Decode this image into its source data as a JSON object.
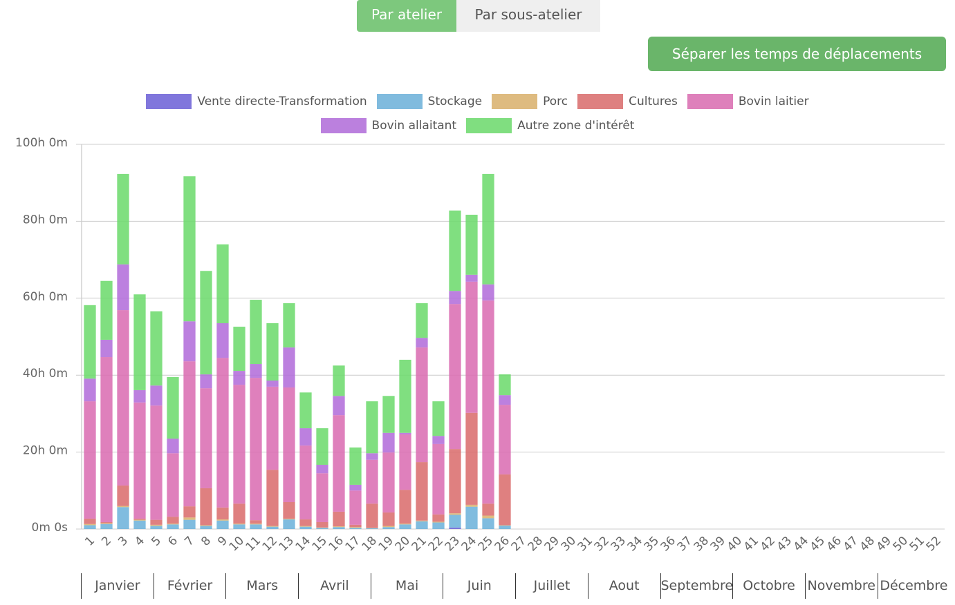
{
  "tabs": [
    "Par atelier",
    "Par sous-atelier"
  ],
  "button": "Séparer les temps de déplacements",
  "months": [
    "Janvier",
    "Février",
    "Mars",
    "Avril",
    "Mai",
    "Juin",
    "Juillet",
    "Aout",
    "Septembre",
    "Octobre",
    "Novembre",
    "Décembre"
  ],
  "chart_data": {
    "type": "bar",
    "stacked": true,
    "categories": [
      "1",
      "2",
      "3",
      "4",
      "5",
      "6",
      "7",
      "8",
      "9",
      "10",
      "11",
      "12",
      "13",
      "14",
      "15",
      "16",
      "17",
      "18",
      "19",
      "20",
      "21",
      "22",
      "23",
      "24",
      "25",
      "26",
      "27",
      "28",
      "29",
      "30",
      "31",
      "32",
      "33",
      "34",
      "35",
      "36",
      "37",
      "38",
      "39",
      "40",
      "41",
      "42",
      "43",
      "44",
      "45",
      "46",
      "47",
      "48",
      "49",
      "50",
      "51",
      "52"
    ],
    "ylim": [
      0,
      100
    ],
    "yticks": [
      {
        "value": 0,
        "label": "0m 0s"
      },
      {
        "value": 20,
        "label": "20h 0m"
      },
      {
        "value": 40,
        "label": "40h 0m"
      },
      {
        "value": 60,
        "label": "60h 0m"
      },
      {
        "value": 80,
        "label": "80h 0m"
      },
      {
        "value": 100,
        "label": "100h 0m"
      }
    ],
    "grid": true,
    "legend": "top",
    "series": [
      {
        "name": "Vente directe-Transformation",
        "color": "#6a5fd6",
        "values": [
          0,
          0,
          0,
          0,
          0,
          0,
          0,
          0,
          0,
          0,
          0,
          0,
          0,
          0,
          0,
          0,
          0,
          0,
          0,
          0,
          0,
          0,
          0.4,
          0,
          0,
          0,
          0,
          0,
          0,
          0,
          0,
          0,
          0,
          0,
          0,
          0,
          0,
          0,
          0,
          0,
          0,
          0,
          0,
          0,
          0,
          0,
          0,
          0,
          0,
          0,
          0,
          0
        ]
      },
      {
        "name": "Stockage",
        "color": "#6ab0d9",
        "values": [
          1,
          1.3,
          5.7,
          2.2,
          0.8,
          1.2,
          2.4,
          0.8,
          2.2,
          1.2,
          1.2,
          0.6,
          2.5,
          0.6,
          0.3,
          0.5,
          0.3,
          0.2,
          0.5,
          1.2,
          2,
          1.7,
          3.3,
          5.8,
          2.8,
          0.9,
          0,
          0,
          0,
          0,
          0,
          0,
          0,
          0,
          0,
          0,
          0,
          0,
          0,
          0,
          0,
          0,
          0,
          0,
          0,
          0,
          0,
          0,
          0,
          0,
          0,
          0
        ]
      },
      {
        "name": "Porc",
        "color": "#d9b06a",
        "values": [
          0.3,
          0.2,
          0.3,
          0.2,
          0.3,
          0.2,
          0.6,
          0.2,
          0.3,
          0.2,
          0.2,
          0.2,
          0.2,
          0.2,
          0.1,
          0.2,
          0.2,
          0.1,
          0.3,
          0.2,
          0.2,
          0.2,
          0.4,
          0.5,
          0.7,
          0.1,
          0,
          0,
          0,
          0,
          0,
          0,
          0,
          0,
          0,
          0,
          0,
          0,
          0,
          0,
          0,
          0,
          0,
          0,
          0,
          0,
          0,
          0,
          0,
          0,
          0,
          0
        ]
      },
      {
        "name": "Cultures",
        "color": "#d96a6a",
        "values": [
          1.4,
          0.3,
          5.3,
          0.3,
          1.3,
          1.8,
          2.9,
          9.6,
          3.1,
          5.2,
          0.9,
          14.6,
          4.3,
          1.7,
          1.4,
          3.8,
          0.6,
          6.3,
          3.5,
          8.8,
          15.2,
          1.9,
          16.7,
          23.9,
          3.1,
          13.2,
          0,
          0,
          0,
          0,
          0,
          0,
          0,
          0,
          0,
          0,
          0,
          0,
          0,
          0,
          0,
          0,
          0,
          0,
          0,
          0,
          0,
          0,
          0,
          0,
          0,
          0
        ]
      },
      {
        "name": "Bovin laitier",
        "color": "#d96ab0",
        "values": [
          30.5,
          42.9,
          45.6,
          30.2,
          29.7,
          16.5,
          37.7,
          26,
          38.9,
          30.9,
          37,
          21.6,
          29.8,
          19.2,
          12.7,
          25.1,
          8.9,
          11.4,
          15.6,
          14.4,
          29.8,
          18.3,
          37.7,
          34.1,
          52.8,
          18.1,
          0,
          0,
          0,
          0,
          0,
          0,
          0,
          0,
          0,
          0,
          0,
          0,
          0,
          0,
          0,
          0,
          0,
          0,
          0,
          0,
          0,
          0,
          0,
          0,
          0,
          0
        ]
      },
      {
        "name": "Bovin allaitant",
        "color": "#b06ad9",
        "values": [
          5.9,
          4.5,
          11.9,
          3.2,
          5.2,
          3.8,
          10.4,
          3.6,
          9,
          3.6,
          3.6,
          1.6,
          10.4,
          4.5,
          2.2,
          5,
          1.5,
          1.7,
          5.1,
          0.4,
          2.5,
          2.1,
          3.4,
          1.8,
          4.2,
          2.5,
          0,
          0,
          0,
          0,
          0,
          0,
          0,
          0,
          0,
          0,
          0,
          0,
          0,
          0,
          0,
          0,
          0,
          0,
          0,
          0,
          0,
          0,
          0,
          0,
          0,
          0
        ]
      },
      {
        "name": "Autre zone d'intérêt",
        "color": "#6ad96a",
        "values": [
          19.1,
          15.3,
          23.5,
          24.9,
          19.3,
          16,
          37.7,
          26.9,
          20.5,
          11.5,
          16.7,
          14.9,
          11.5,
          9.3,
          9.5,
          7.9,
          9.7,
          13.5,
          9.6,
          19,
          9,
          9,
          20.9,
          15.6,
          28.7,
          5.4,
          0,
          0,
          0,
          0,
          0,
          0,
          0,
          0,
          0,
          0,
          0,
          0,
          0,
          0,
          0,
          0,
          0,
          0,
          0,
          0,
          0,
          0,
          0,
          0,
          0,
          0
        ]
      }
    ]
  }
}
